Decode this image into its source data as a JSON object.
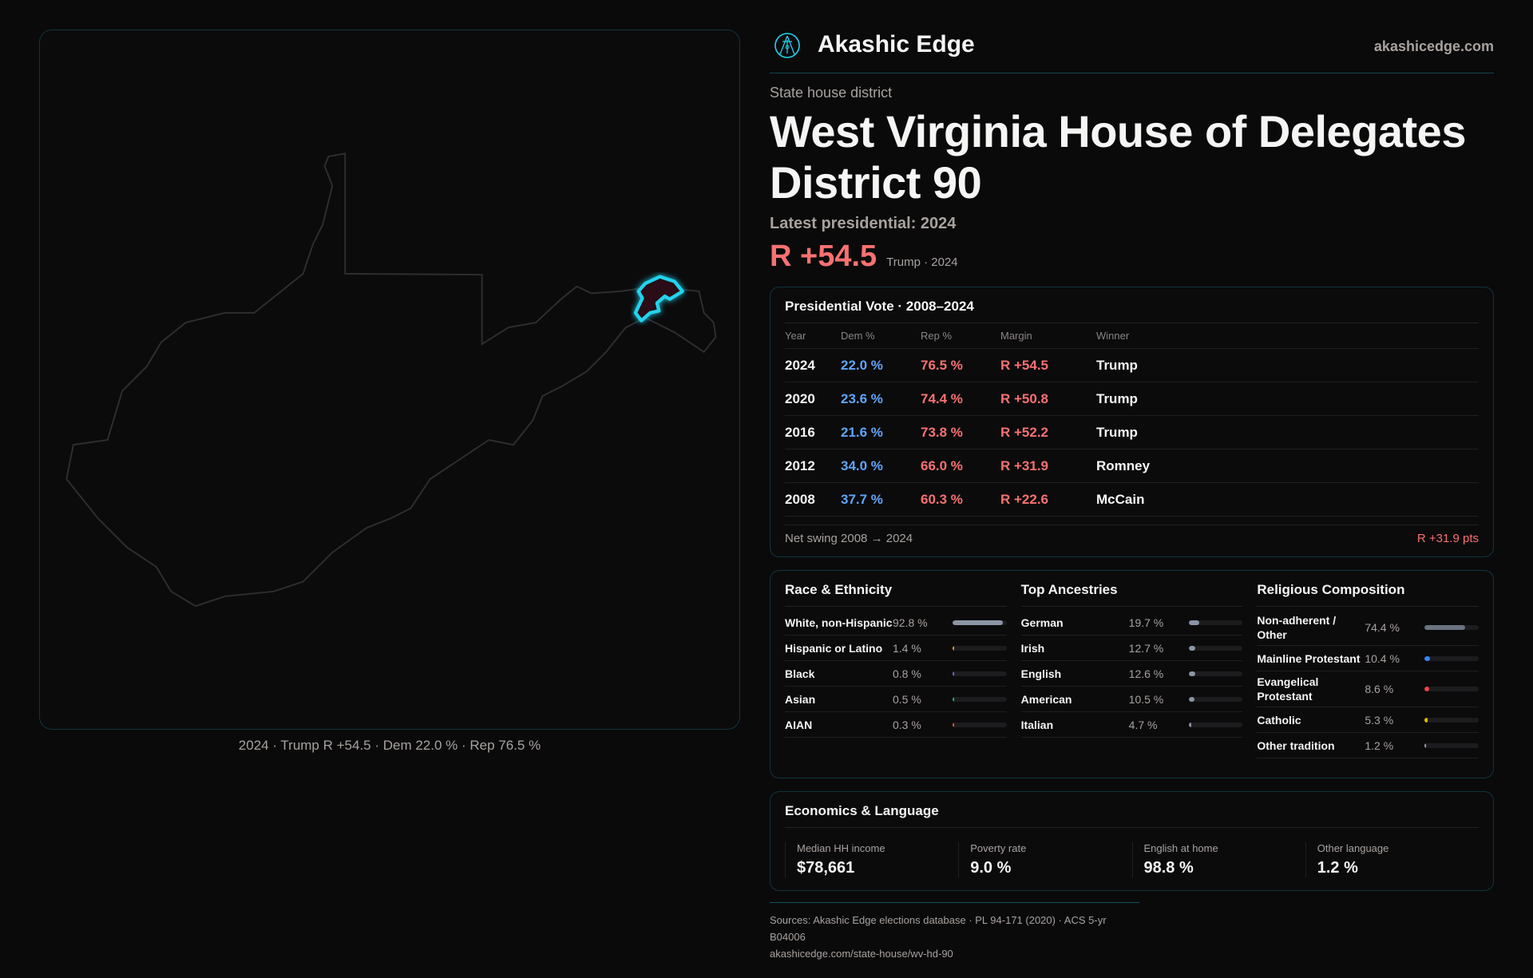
{
  "brand": {
    "name": "Akashic Edge",
    "site": "akashicedge.com",
    "logo_icon": "akashic-seal-icon",
    "accent": "#22d3ee"
  },
  "district": {
    "kicker": "State house district",
    "title": "West Virginia House of Delegates District 90",
    "latest": "Latest presidential: 2024",
    "margin": "R +54.5",
    "margin_sub": "Trump · 2024"
  },
  "map": {
    "caption": "2024 · Trump R +54.5 · Dem 22.0 % · Rep 76.5 %",
    "highlight_color": "#22d3ee"
  },
  "presidential": {
    "title": "Presidential Vote · 2008–2024",
    "headers": [
      "Year",
      "Dem %",
      "Rep %",
      "Margin",
      "Winner"
    ],
    "rows": [
      {
        "year": "2024",
        "dem": "22.0 %",
        "rep": "76.5 %",
        "margin": "R +54.5",
        "winner": "Trump"
      },
      {
        "year": "2020",
        "dem": "23.6 %",
        "rep": "74.4 %",
        "margin": "R +50.8",
        "winner": "Trump"
      },
      {
        "year": "2016",
        "dem": "21.6 %",
        "rep": "73.8 %",
        "margin": "R +52.2",
        "winner": "Trump"
      },
      {
        "year": "2012",
        "dem": "34.0 %",
        "rep": "66.0 %",
        "margin": "R +31.9",
        "winner": "Romney"
      },
      {
        "year": "2008",
        "dem": "37.7 %",
        "rep": "60.3 %",
        "margin": "R +22.6",
        "winner": "McCain"
      }
    ],
    "swing_label": "Net swing 2008 → 2024",
    "swing_value": "R +31.9 pts"
  },
  "race": {
    "title": "Race & Ethnicity",
    "items": [
      {
        "label": "White, non-Hispanic",
        "value": "92.8 %",
        "pct": 92.8,
        "color": "#8b95a5"
      },
      {
        "label": "Hispanic or Latino",
        "value": "1.4 %",
        "pct": 1.4,
        "color": "#f59e0b"
      },
      {
        "label": "Black",
        "value": "0.8 %",
        "pct": 0.8,
        "color": "#8b5cf6"
      },
      {
        "label": "Asian",
        "value": "0.5 %",
        "pct": 0.5,
        "color": "#10b981"
      },
      {
        "label": "AIAN",
        "value": "0.3 %",
        "pct": 0.3,
        "color": "#ea580c"
      }
    ]
  },
  "ancestry": {
    "title": "Top Ancestries",
    "items": [
      {
        "label": "German",
        "value": "19.7 %",
        "pct": 19.7,
        "color": "#8b95a5"
      },
      {
        "label": "Irish",
        "value": "12.7 %",
        "pct": 12.7,
        "color": "#8b95a5"
      },
      {
        "label": "English",
        "value": "12.6 %",
        "pct": 12.6,
        "color": "#8b95a5"
      },
      {
        "label": "American",
        "value": "10.5 %",
        "pct": 10.5,
        "color": "#8b95a5"
      },
      {
        "label": "Italian",
        "value": "4.7 %",
        "pct": 4.7,
        "color": "#8b95a5"
      }
    ]
  },
  "religion": {
    "title": "Religious Composition",
    "items": [
      {
        "label": "Non-adherent / Other",
        "value": "74.4 %",
        "pct": 74.4,
        "color": "#6b7280"
      },
      {
        "label": "Mainline Protestant",
        "value": "10.4 %",
        "pct": 10.4,
        "color": "#3b82f6"
      },
      {
        "label": "Evangelical Protestant",
        "value": "8.6 %",
        "pct": 8.6,
        "color": "#ef4444"
      },
      {
        "label": "Catholic",
        "value": "5.3 %",
        "pct": 5.3,
        "color": "#eab308"
      },
      {
        "label": "Other tradition",
        "value": "1.2 %",
        "pct": 1.2,
        "color": "#9ca3af"
      }
    ]
  },
  "economics": {
    "title": "Economics & Language",
    "stats": [
      {
        "label": "Median HH income",
        "value": "$78,661"
      },
      {
        "label": "Poverty rate",
        "value": "9.0 %"
      },
      {
        "label": "English at home",
        "value": "98.8 %"
      },
      {
        "label": "Other language",
        "value": "1.2 %"
      }
    ]
  },
  "sources": {
    "line1": "Sources: Akashic Edge elections database · PL 94-171 (2020) · ACS 5-yr B04006",
    "line2": "akashicedge.com/state-house/wv-hd-90"
  }
}
